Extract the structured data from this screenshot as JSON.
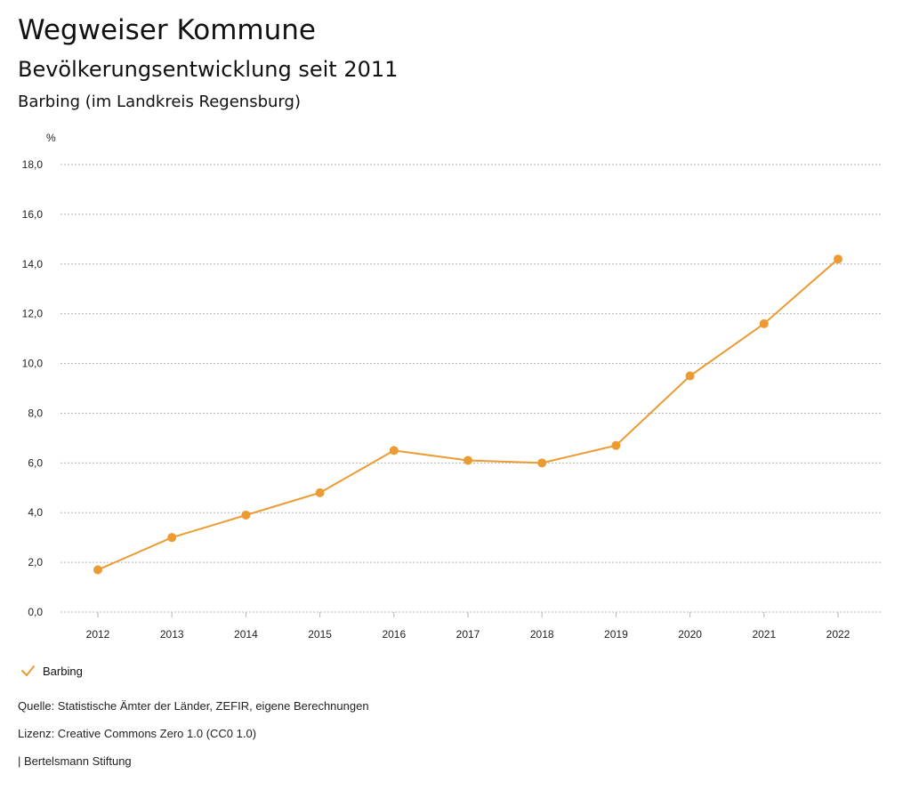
{
  "header": {
    "title": "Wegweiser Kommune",
    "subtitle": "Bevölkerungsentwicklung seit 2011",
    "region": "Barbing (im Landkreis Regensburg)"
  },
  "chart_data": {
    "type": "line",
    "ylabel": "%",
    "xlabel": "",
    "categories": [
      "2012",
      "2013",
      "2014",
      "2015",
      "2016",
      "2017",
      "2018",
      "2019",
      "2020",
      "2021",
      "2022"
    ],
    "series": [
      {
        "name": "Barbing",
        "color": "#ec9a32",
        "values": [
          1.7,
          3.0,
          3.9,
          4.8,
          6.5,
          6.1,
          6.0,
          6.7,
          9.5,
          11.6,
          14.2
        ]
      }
    ],
    "ylim": [
      0,
      18
    ],
    "yticks": [
      "0,0",
      "2,0",
      "4,0",
      "6,0",
      "8,0",
      "10,0",
      "12,0",
      "14,0",
      "16,0",
      "18,0"
    ],
    "grid": true,
    "legend_position": "bottom-left"
  },
  "legend": {
    "series_label": "Barbing"
  },
  "footer": {
    "source": "Quelle: Statistische Ämter der Länder, ZEFIR, eigene Berechnungen",
    "license": "Lizenz: Creative Commons Zero 1.0 (CC0 1.0)",
    "publisher": "| Bertelsmann Stiftung"
  }
}
